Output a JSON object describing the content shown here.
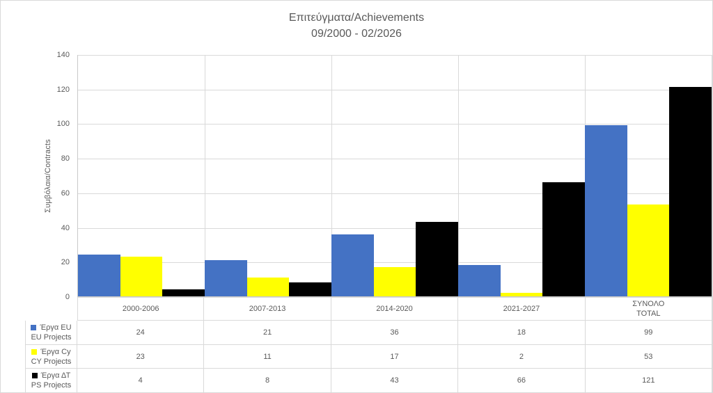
{
  "chart_data": {
    "type": "bar",
    "title": "Επιτεύγματα/Achievements",
    "subtitle": "09/2000 - 02/2026",
    "ylabel": "Συμβόλαια/Contracts",
    "categories": [
      "2000-2006",
      "2007-2013",
      "2014-2020",
      "2021-2027",
      "ΣΥΝΟΛΟ\nTOTAL"
    ],
    "series": [
      {
        "name_el": "Έργα EU",
        "name_en": "EU Projects",
        "color": "#4472C4",
        "values": [
          24,
          21,
          36,
          18,
          99
        ]
      },
      {
        "name_el": "Έργα Cy",
        "name_en": "CY Projects",
        "color": "#FFFF00",
        "values": [
          23,
          11,
          17,
          2,
          53
        ]
      },
      {
        "name_el": "Έργα ΔΤ",
        "name_en": "PS Projects",
        "color": "#000000",
        "values": [
          4,
          8,
          43,
          66,
          121
        ]
      }
    ],
    "ylim": [
      0,
      140
    ],
    "yticks": [
      0,
      20,
      40,
      60,
      80,
      100,
      120,
      140
    ],
    "grid": true,
    "legend_position": "table-left",
    "colors": {
      "text": "#595959",
      "gridline": "#D9D9D9",
      "axis": "#C9C9C9"
    }
  }
}
